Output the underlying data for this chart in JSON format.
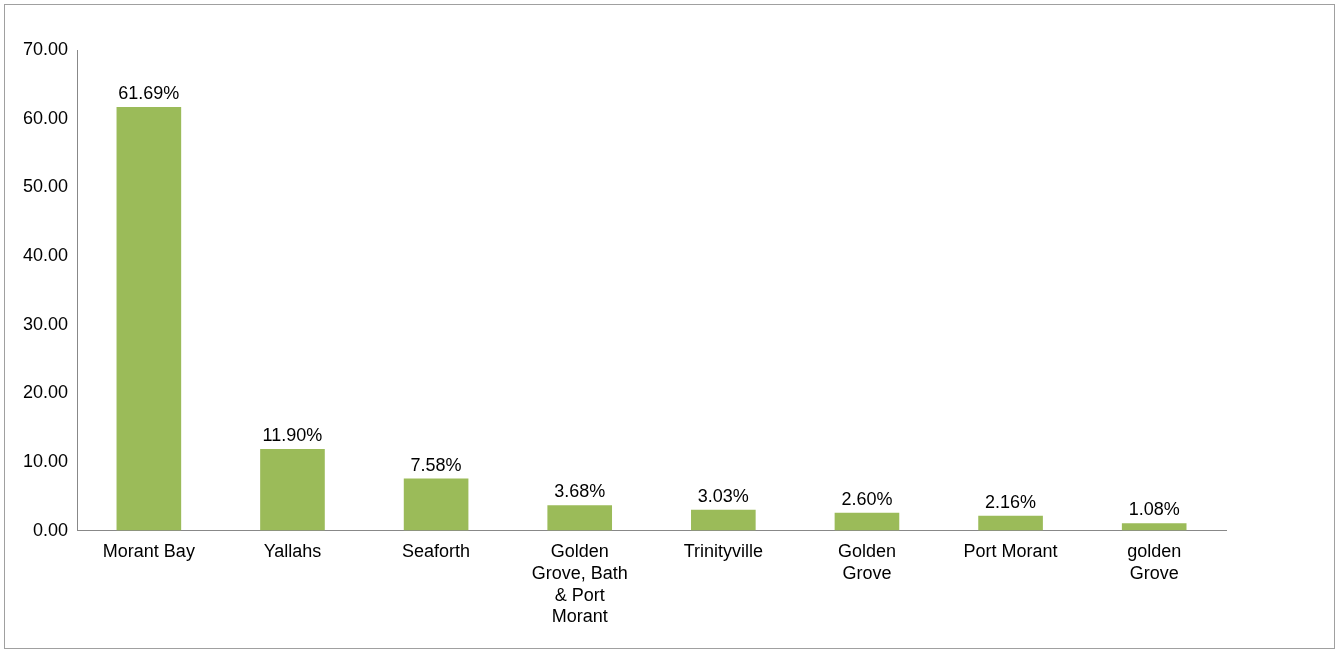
{
  "chart_data": {
    "type": "bar",
    "categories": [
      "Morant Bay",
      "Yallahs",
      "Seaforth",
      "Golden Grove, Bath & Port Morant",
      "Trinityville",
      "Golden Grove",
      "Port Morant",
      "golden Grove"
    ],
    "values": [
      61.69,
      11.9,
      7.58,
      3.68,
      3.03,
      2.6,
      2.16,
      1.08
    ],
    "value_labels": [
      "61.69%",
      "11.90%",
      "7.58%",
      "3.68%",
      "3.03%",
      "2.60%",
      "2.16%",
      "1.08%"
    ],
    "color": "#9bbb59",
    "ylim": [
      0,
      70
    ],
    "yticks": [
      {
        "value": 0,
        "label": "0.00"
      },
      {
        "value": 10,
        "label": "10.00"
      },
      {
        "value": 20,
        "label": "20.00"
      },
      {
        "value": 30,
        "label": "30.00"
      },
      {
        "value": 40,
        "label": "40.00"
      },
      {
        "value": 50,
        "label": "50.00"
      },
      {
        "value": 60,
        "label": "60.00"
      },
      {
        "value": 70,
        "label": "70.00"
      }
    ],
    "grid": false,
    "legend": false
  }
}
